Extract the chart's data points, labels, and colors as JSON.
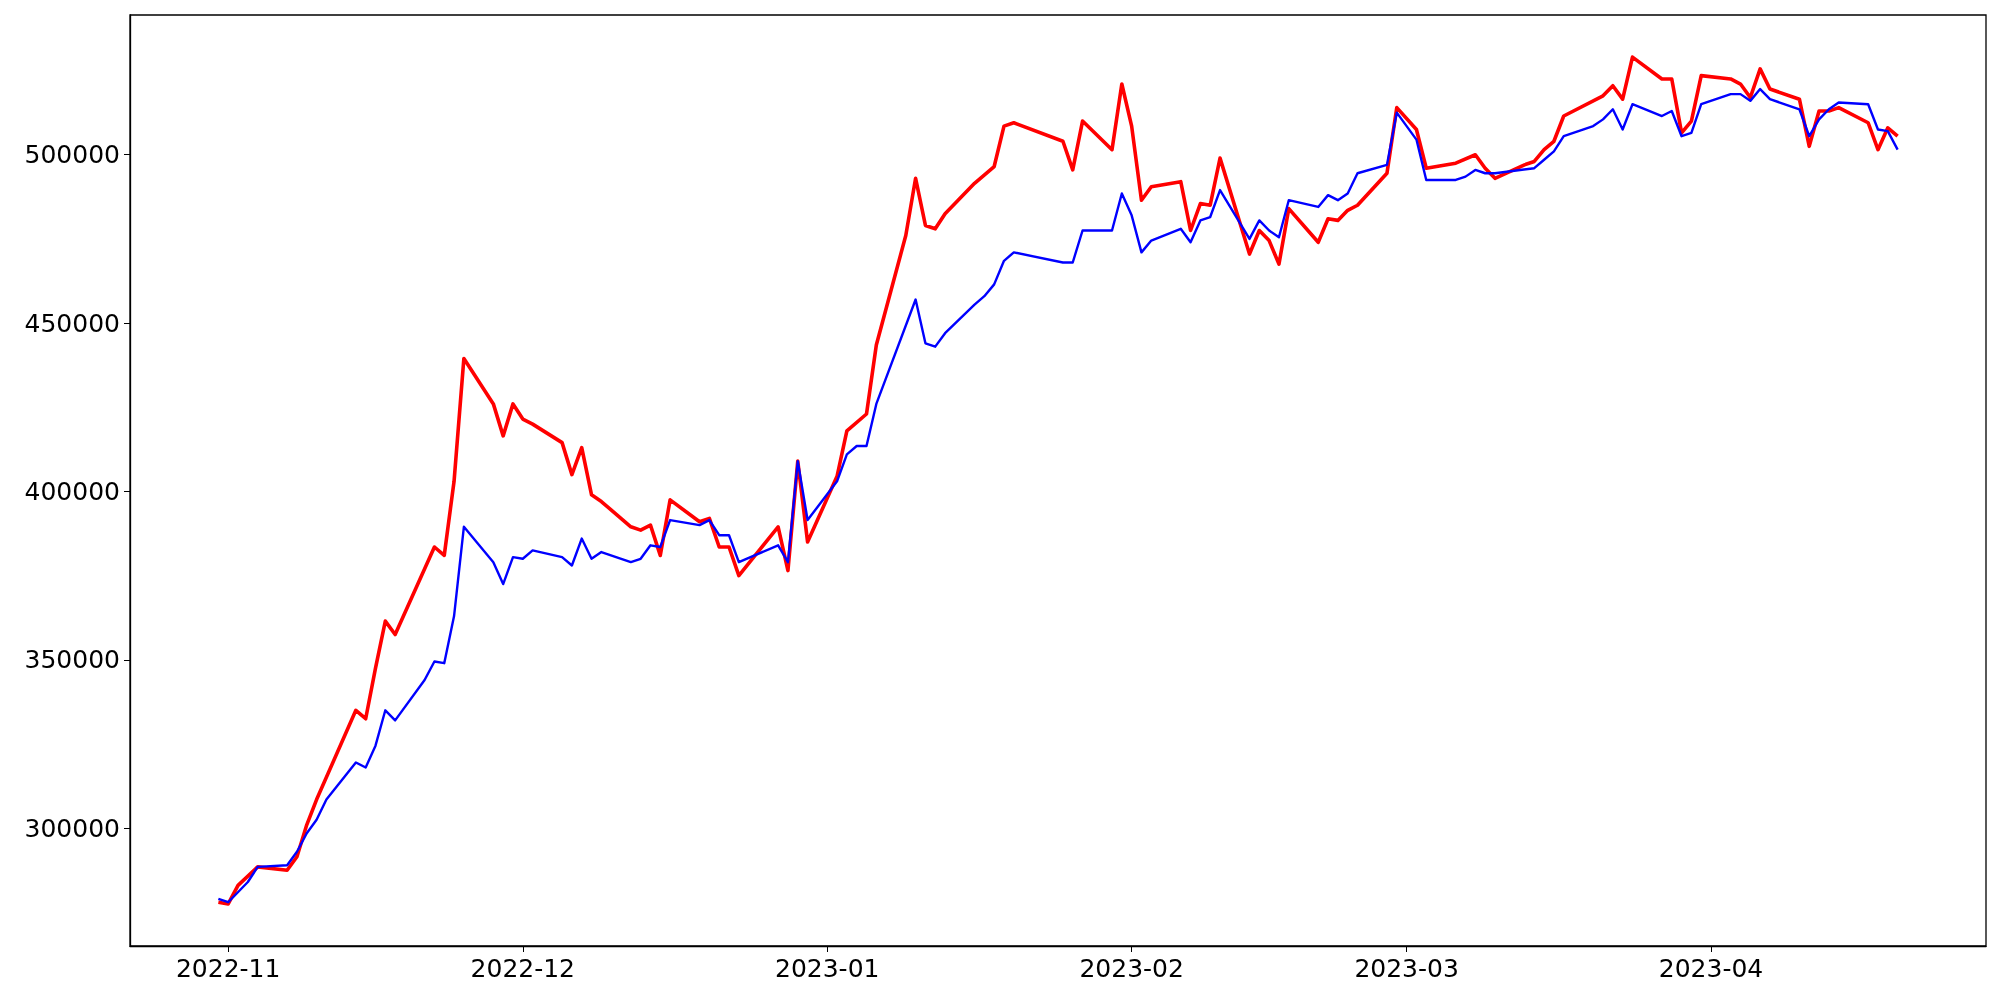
{
  "chart_data": {
    "type": "line",
    "xlim": [
      "2022-10-22",
      "2023-04-29"
    ],
    "xticks": [
      {
        "value": "2022-11-01",
        "label": "2022-11"
      },
      {
        "value": "2022-12-01",
        "label": "2022-12"
      },
      {
        "value": "2023-01-01",
        "label": "2023-01"
      },
      {
        "value": "2023-02-01",
        "label": "2023-02"
      },
      {
        "value": "2023-03-01",
        "label": "2023-03"
      },
      {
        "value": "2023-04-01",
        "label": "2023-04"
      }
    ],
    "ylim": [
      265000,
      541500
    ],
    "yticks": [
      300000,
      350000,
      400000,
      450000,
      500000
    ],
    "grid": false,
    "marker": "none",
    "line_style": "solid",
    "series": [
      {
        "color": "#ff0000",
        "x": [
          "2022-10-31",
          "2022-11-01",
          "2022-11-02",
          "2022-11-04",
          "2022-11-07",
          "2022-11-08",
          "2022-11-09",
          "2022-11-10",
          "2022-11-14",
          "2022-11-15",
          "2022-11-16",
          "2022-11-17",
          "2022-11-18",
          "2022-11-22",
          "2022-11-23",
          "2022-11-24",
          "2022-11-25",
          "2022-11-28",
          "2022-11-29",
          "2022-11-30",
          "2022-12-01",
          "2022-12-02",
          "2022-12-05",
          "2022-12-06",
          "2022-12-07",
          "2022-12-08",
          "2022-12-09",
          "2022-12-12",
          "2022-12-13",
          "2022-12-14",
          "2022-12-15",
          "2022-12-16",
          "2022-12-19",
          "2022-12-20",
          "2022-12-21",
          "2022-12-22",
          "2022-12-23",
          "2022-12-27",
          "2022-12-28",
          "2022-12-29",
          "2022-12-30",
          "2023-01-02",
          "2023-01-03",
          "2023-01-05",
          "2023-01-06",
          "2023-01-09",
          "2023-01-10",
          "2023-01-11",
          "2023-01-12",
          "2023-01-13",
          "2023-01-16",
          "2023-01-18",
          "2023-01-19",
          "2023-01-20",
          "2023-01-25",
          "2023-01-26",
          "2023-01-27",
          "2023-01-30",
          "2023-01-31",
          "2023-02-01",
          "2023-02-02",
          "2023-02-03",
          "2023-02-06",
          "2023-02-07",
          "2023-02-08",
          "2023-02-09",
          "2023-02-10",
          "2023-02-13",
          "2023-02-14",
          "2023-02-15",
          "2023-02-16",
          "2023-02-17",
          "2023-02-20",
          "2023-02-21",
          "2023-02-22",
          "2023-02-23",
          "2023-02-24",
          "2023-02-27",
          "2023-02-28",
          "2023-03-02",
          "2023-03-03",
          "2023-03-06",
          "2023-03-08",
          "2023-03-09",
          "2023-03-10",
          "2023-03-13",
          "2023-03-14",
          "2023-03-15",
          "2023-03-16",
          "2023-03-17",
          "2023-03-21",
          "2023-03-22",
          "2023-03-23",
          "2023-03-24",
          "2023-03-27",
          "2023-03-28",
          "2023-03-29",
          "2023-03-30",
          "2023-03-31",
          "2023-04-03",
          "2023-04-04",
          "2023-04-05",
          "2023-04-06",
          "2023-04-07",
          "2023-04-10",
          "2023-04-11",
          "2023-04-12",
          "2023-04-13",
          "2023-04-14",
          "2023-04-17",
          "2023-04-18",
          "2023-04-19",
          "2023-04-20"
        ],
        "values": [
          278000,
          277500,
          283000,
          288500,
          287500,
          291500,
          301000,
          308500,
          335000,
          332500,
          347500,
          361500,
          357500,
          383500,
          381000,
          403000,
          439500,
          426000,
          416500,
          426000,
          421500,
          420000,
          414500,
          405000,
          413000,
          399000,
          397000,
          389500,
          388500,
          390000,
          381000,
          397500,
          391000,
          392000,
          383500,
          383500,
          375000,
          389500,
          376500,
          409000,
          385000,
          404500,
          418000,
          423000,
          443500,
          476000,
          493000,
          479000,
          478000,
          482500,
          491500,
          496500,
          508500,
          509500,
          504000,
          495500,
          510000,
          501500,
          521000,
          508500,
          486500,
          490500,
          492000,
          477500,
          485500,
          485000,
          499000,
          470500,
          477500,
          474500,
          467500,
          484000,
          474000,
          481000,
          480500,
          483500,
          485000,
          494500,
          514000,
          507500,
          496000,
          497500,
          500000,
          496000,
          493000,
          497000,
          498000,
          501500,
          504000,
          511500,
          517500,
          520500,
          516500,
          529000,
          522500,
          522500,
          506500,
          510000,
          523500,
          522500,
          521000,
          517000,
          525500,
          519500,
          516500,
          502500,
          513000,
          513000,
          514000,
          509500,
          501500,
          508000,
          505500
        ]
      },
      {
        "color": "#0000ff",
        "x": [
          "2022-10-31",
          "2022-11-01",
          "2022-11-03",
          "2022-11-04",
          "2022-11-07",
          "2022-11-08",
          "2022-11-09",
          "2022-11-10",
          "2022-11-11",
          "2022-11-14",
          "2022-11-15",
          "2022-11-16",
          "2022-11-17",
          "2022-11-18",
          "2022-11-21",
          "2022-11-22",
          "2022-11-23",
          "2022-11-24",
          "2022-11-25",
          "2022-11-28",
          "2022-11-29",
          "2022-11-30",
          "2022-12-01",
          "2022-12-02",
          "2022-12-05",
          "2022-12-06",
          "2022-12-07",
          "2022-12-08",
          "2022-12-09",
          "2022-12-12",
          "2022-12-13",
          "2022-12-14",
          "2022-12-15",
          "2022-12-16",
          "2022-12-19",
          "2022-12-20",
          "2022-12-21",
          "2022-12-22",
          "2022-12-23",
          "2022-12-27",
          "2022-12-28",
          "2022-12-29",
          "2022-12-30",
          "2023-01-02",
          "2023-01-03",
          "2023-01-04",
          "2023-01-05",
          "2023-01-06",
          "2023-01-10",
          "2023-01-11",
          "2023-01-12",
          "2023-01-13",
          "2023-01-16",
          "2023-01-17",
          "2023-01-18",
          "2023-01-19",
          "2023-01-20",
          "2023-01-25",
          "2023-01-26",
          "2023-01-27",
          "2023-01-30",
          "2023-01-31",
          "2023-02-01",
          "2023-02-02",
          "2023-02-03",
          "2023-02-06",
          "2023-02-07",
          "2023-02-08",
          "2023-02-09",
          "2023-02-10",
          "2023-02-13",
          "2023-02-14",
          "2023-02-15",
          "2023-02-16",
          "2023-02-17",
          "2023-02-20",
          "2023-02-21",
          "2023-02-22",
          "2023-02-23",
          "2023-02-24",
          "2023-02-27",
          "2023-02-28",
          "2023-03-02",
          "2023-03-03",
          "2023-03-06",
          "2023-03-07",
          "2023-03-08",
          "2023-03-09",
          "2023-03-10",
          "2023-03-14",
          "2023-03-15",
          "2023-03-16",
          "2023-03-17",
          "2023-03-20",
          "2023-03-21",
          "2023-03-22",
          "2023-03-23",
          "2023-03-24",
          "2023-03-27",
          "2023-03-28",
          "2023-03-29",
          "2023-03-30",
          "2023-03-31",
          "2023-04-03",
          "2023-04-04",
          "2023-04-05",
          "2023-04-06",
          "2023-04-07",
          "2023-04-10",
          "2023-04-11",
          "2023-04-12",
          "2023-04-13",
          "2023-04-14",
          "2023-04-17",
          "2023-04-18",
          "2023-04-19",
          "2023-04-20"
        ],
        "values": [
          279000,
          278000,
          284000,
          288500,
          289000,
          293000,
          298500,
          302500,
          308500,
          319500,
          318000,
          324500,
          335000,
          332000,
          344000,
          349500,
          349000,
          363000,
          389500,
          379000,
          372500,
          380500,
          380000,
          382500,
          380500,
          378000,
          386000,
          380000,
          382000,
          379000,
          380000,
          384000,
          383500,
          391500,
          390000,
          391500,
          387000,
          387000,
          379000,
          384000,
          379000,
          409000,
          391500,
          403000,
          411000,
          413500,
          413500,
          426000,
          457000,
          444000,
          443000,
          447000,
          455500,
          458000,
          461500,
          468500,
          471000,
          468000,
          468000,
          477500,
          477500,
          488500,
          482000,
          471000,
          474500,
          478000,
          474000,
          480500,
          481500,
          489500,
          475000,
          480500,
          477500,
          475500,
          486500,
          484500,
          488000,
          486500,
          488500,
          494500,
          497000,
          512500,
          504500,
          492500,
          492500,
          493500,
          495500,
          494500,
          494500,
          496000,
          498500,
          501000,
          505500,
          508500,
          510500,
          513500,
          507500,
          515000,
          511500,
          513000,
          505500,
          506500,
          515000,
          518000,
          518000,
          516000,
          519500,
          516500,
          513500,
          505500,
          510500,
          513500,
          515500,
          515000,
          507500,
          507000,
          501500
        ]
      }
    ]
  }
}
